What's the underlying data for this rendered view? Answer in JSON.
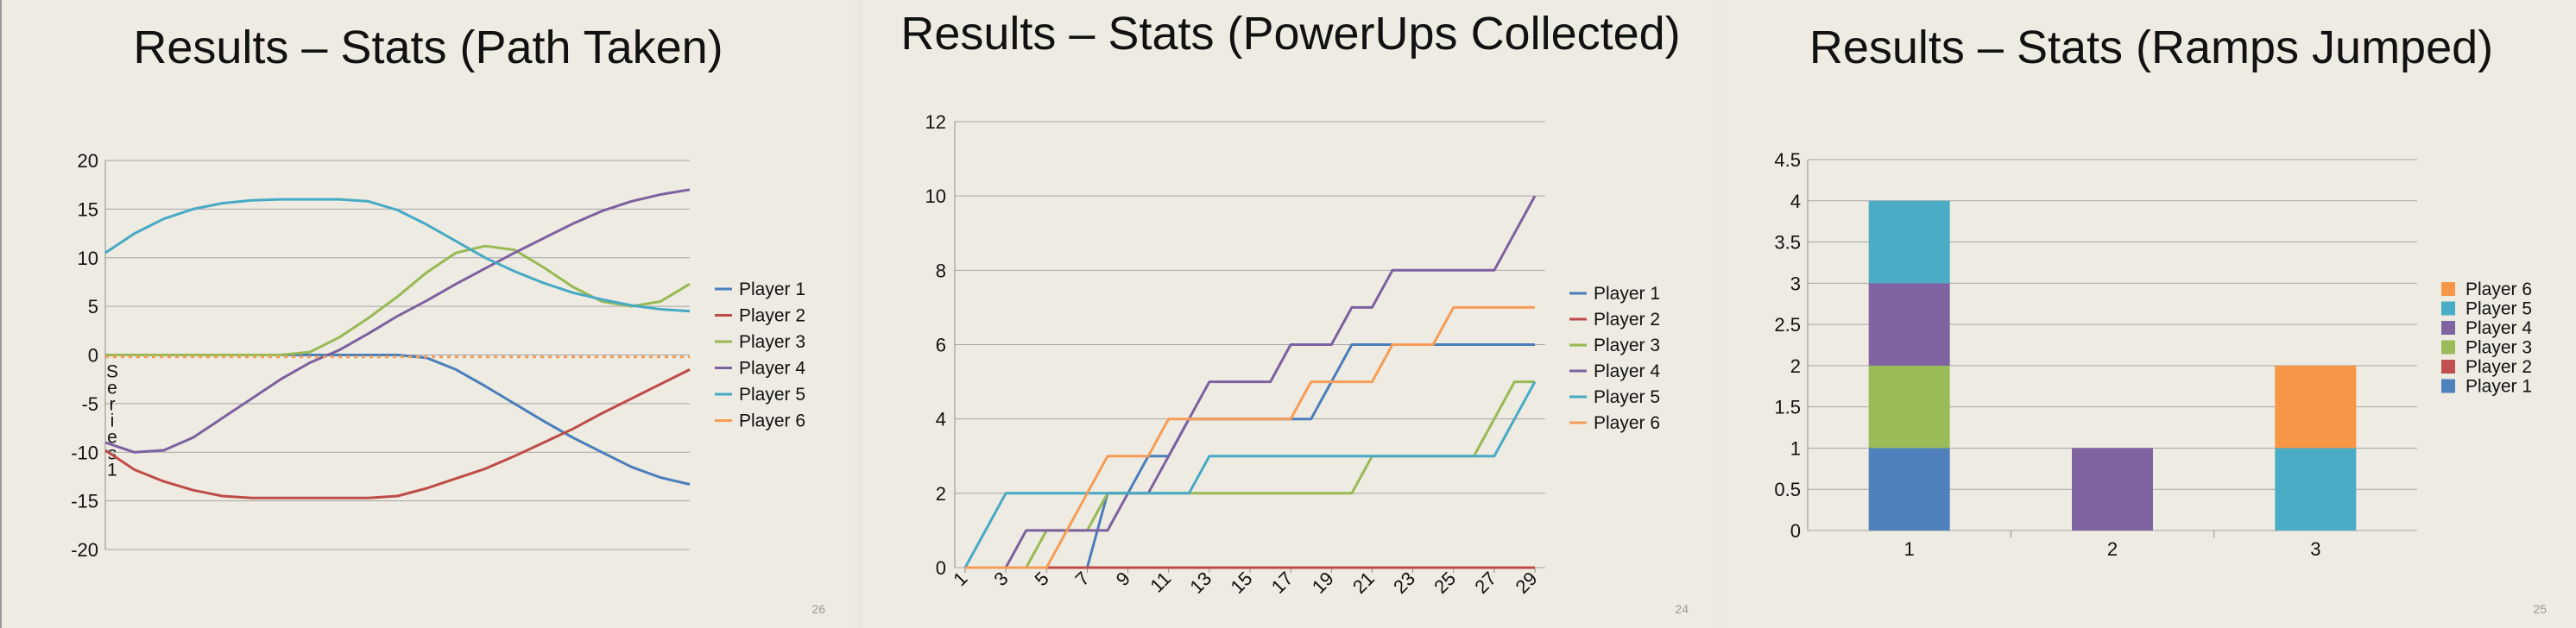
{
  "slides": [
    {
      "title": "Results – Stats (Path Taken)",
      "page_number": "26"
    },
    {
      "title": "Results – Stats (PowerUps Collected)",
      "page_number": "24"
    },
    {
      "title": "Results – Stats (Ramps Jumped)",
      "page_number": "25"
    }
  ],
  "chart_data": [
    {
      "type": "line",
      "title": "",
      "ylim": [
        -20,
        20
      ],
      "ytick_step": 5,
      "yticks": [
        "20",
        "15",
        "10",
        "5",
        "0",
        "-5",
        "-10",
        "-15",
        "-20"
      ],
      "ylabel_vertical": "Series1",
      "x": [
        0,
        5,
        10,
        15,
        20,
        25,
        30,
        35,
        40,
        45,
        50,
        55,
        60,
        65,
        70,
        75,
        80,
        85,
        90,
        95,
        100
      ],
      "grid": true,
      "legend": "right",
      "series": [
        {
          "name": "Player 1",
          "color": "#4a7ebb",
          "values": [
            0,
            0,
            0,
            0,
            0,
            0,
            0,
            0,
            0,
            0,
            0,
            -0.3,
            -1.5,
            -3.2,
            -5.0,
            -6.8,
            -8.5,
            -10.0,
            -11.5,
            -12.6,
            -13.3
          ]
        },
        {
          "name": "Player 2",
          "color": "#be4b48",
          "values": [
            -9.8,
            -11.8,
            -13.0,
            -13.9,
            -14.5,
            -14.7,
            -14.7,
            -14.7,
            -14.7,
            -14.7,
            -14.5,
            -13.7,
            -12.7,
            -11.7,
            -10.4,
            -9.0,
            -7.6,
            -6.0,
            -4.5,
            -3.0,
            -1.5
          ]
        },
        {
          "name": "Player 3",
          "color": "#98b954",
          "values": [
            0,
            0,
            0,
            0,
            0,
            0,
            0,
            0.3,
            1.8,
            3.8,
            6.0,
            8.5,
            10.5,
            11.2,
            10.8,
            9.0,
            7.0,
            5.5,
            5.0,
            5.5,
            7.3
          ]
        },
        {
          "name": "Player 4",
          "color": "#7d60a0",
          "values": [
            -9.0,
            -10.0,
            -9.8,
            -8.5,
            -6.5,
            -4.5,
            -2.5,
            -0.8,
            0.5,
            2.2,
            4.0,
            5.6,
            7.3,
            8.9,
            10.5,
            12.0,
            13.5,
            14.8,
            15.8,
            16.5,
            17.0
          ]
        },
        {
          "name": "Player 5",
          "color": "#46aac5",
          "values": [
            10.5,
            12.5,
            14.0,
            15.0,
            15.6,
            15.9,
            16.0,
            16.0,
            16.0,
            15.8,
            14.9,
            13.4,
            11.7,
            10.0,
            8.6,
            7.4,
            6.4,
            5.7,
            5.1,
            4.7,
            4.5
          ]
        },
        {
          "name": "Player 6",
          "color": "#f59d56",
          "values": [
            -0.2,
            -0.2,
            -0.2,
            -0.2,
            -0.2,
            -0.2,
            -0.2,
            -0.2,
            -0.2,
            -0.2,
            -0.2,
            -0.2,
            -0.2,
            -0.2,
            -0.2,
            -0.2,
            -0.2,
            -0.2,
            -0.2,
            -0.2,
            -0.2
          ]
        }
      ]
    },
    {
      "type": "line",
      "title": "",
      "ylim": [
        0,
        12
      ],
      "yticks": [
        "0",
        "2",
        "4",
        "6",
        "8",
        "10",
        "12"
      ],
      "x": [
        1,
        2,
        3,
        4,
        5,
        6,
        7,
        8,
        9,
        10,
        11,
        12,
        13,
        14,
        15,
        16,
        17,
        18,
        19,
        20,
        21,
        22,
        23,
        24,
        25,
        26,
        27,
        28,
        29
      ],
      "xticks": [
        "1",
        "3",
        "5",
        "7",
        "9",
        "11",
        "13",
        "15",
        "17",
        "19",
        "21",
        "23",
        "25",
        "27",
        "29"
      ],
      "grid": true,
      "legend": "right",
      "series": [
        {
          "name": "Player 1",
          "color": "#4a7ebb",
          "values": [
            0,
            0,
            0,
            0,
            0,
            0,
            0,
            2,
            2,
            3,
            3,
            4,
            4,
            4,
            4,
            4,
            4,
            4,
            5,
            6,
            6,
            6,
            6,
            6,
            6,
            6,
            6,
            6,
            6
          ]
        },
        {
          "name": "Player 2",
          "color": "#be4b48",
          "values": [
            0,
            0,
            0,
            0,
            0,
            0,
            0,
            0,
            0,
            0,
            0,
            0,
            0,
            0,
            0,
            0,
            0,
            0,
            0,
            0,
            0,
            0,
            0,
            0,
            0,
            0,
            0,
            0,
            0
          ]
        },
        {
          "name": "Player 3",
          "color": "#98b954",
          "values": [
            0,
            0,
            0,
            0,
            1,
            1,
            1,
            2,
            2,
            2,
            2,
            2,
            2,
            2,
            2,
            2,
            2,
            2,
            2,
            2,
            3,
            3,
            3,
            3,
            3,
            3,
            4,
            5,
            5
          ]
        },
        {
          "name": "Player 4",
          "color": "#7d60a0",
          "values": [
            0,
            0,
            0,
            1,
            1,
            1,
            1,
            1,
            2,
            2,
            3,
            4,
            5,
            5,
            5,
            5,
            6,
            6,
            6,
            7,
            7,
            8,
            8,
            8,
            8,
            8,
            8,
            9,
            10
          ]
        },
        {
          "name": "Player 5",
          "color": "#46aac5",
          "values": [
            0,
            1,
            2,
            2,
            2,
            2,
            2,
            2,
            2,
            2,
            2,
            2,
            3,
            3,
            3,
            3,
            3,
            3,
            3,
            3,
            3,
            3,
            3,
            3,
            3,
            3,
            3,
            4,
            5
          ]
        },
        {
          "name": "Player 6",
          "color": "#f59d56",
          "values": [
            0,
            0,
            0,
            0,
            0,
            1,
            2,
            3,
            3,
            3,
            4,
            4,
            4,
            4,
            4,
            4,
            4,
            5,
            5,
            5,
            5,
            6,
            6,
            6,
            7,
            7,
            7,
            7,
            7
          ]
        }
      ]
    },
    {
      "type": "bar",
      "stacked": true,
      "title": "",
      "categories": [
        "1",
        "2",
        "3"
      ],
      "ylim": [
        0,
        4.5
      ],
      "yticks": [
        "0",
        "0.5",
        "1",
        "1.5",
        "2",
        "2.5",
        "3",
        "3.5",
        "4",
        "4.5"
      ],
      "grid": true,
      "legend": "right",
      "series": [
        {
          "name": "Player 1",
          "color": "#4f81bd",
          "values": [
            1,
            0,
            0
          ]
        },
        {
          "name": "Player 2",
          "color": "#c0504d",
          "values": [
            0,
            0,
            0
          ]
        },
        {
          "name": "Player 3",
          "color": "#9bbb59",
          "values": [
            1,
            0,
            0
          ]
        },
        {
          "name": "Player 4",
          "color": "#8064a2",
          "values": [
            1,
            1,
            0
          ]
        },
        {
          "name": "Player 5",
          "color": "#4bacc6",
          "values": [
            1,
            0,
            1
          ]
        },
        {
          "name": "Player 6",
          "color": "#f79646",
          "values": [
            0,
            0,
            1
          ]
        }
      ]
    }
  ]
}
